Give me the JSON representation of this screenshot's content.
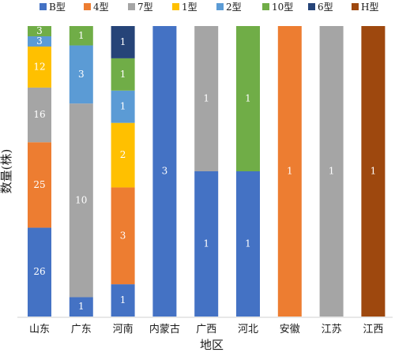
{
  "chart_data": {
    "type": "bar",
    "stacked": "percent",
    "xlabel": "地区",
    "ylabel": "数量(株)",
    "categories": [
      "山东",
      "广东",
      "河南",
      "内蒙古",
      "广西",
      "河北",
      "安徽",
      "江苏",
      "江西"
    ],
    "series": [
      {
        "name": "B型",
        "color": "#4472c4",
        "values": [
          26,
          1,
          1,
          3,
          1,
          1,
          0,
          0,
          0
        ]
      },
      {
        "name": "4型",
        "color": "#ed7d31",
        "values": [
          25,
          0,
          3,
          0,
          0,
          0,
          1,
          0,
          0
        ]
      },
      {
        "name": "7型",
        "color": "#a5a5a5",
        "values": [
          16,
          10,
          0,
          0,
          1,
          0,
          0,
          1,
          0
        ]
      },
      {
        "name": "1型",
        "color": "#ffc000",
        "values": [
          12,
          0,
          2,
          0,
          0,
          0,
          0,
          0,
          0
        ]
      },
      {
        "name": "2型",
        "color": "#5b9bd5",
        "values": [
          3,
          3,
          1,
          0,
          0,
          0,
          0,
          0,
          0
        ]
      },
      {
        "name": "10型",
        "color": "#70ad47",
        "values": [
          3,
          1,
          1,
          0,
          0,
          1,
          0,
          0,
          0
        ]
      },
      {
        "name": "6型",
        "color": "#264478",
        "values": [
          0,
          0,
          1,
          0,
          0,
          0,
          0,
          0,
          0
        ]
      },
      {
        "name": "H型",
        "color": "#9e480e",
        "values": [
          0,
          0,
          0,
          0,
          0,
          0,
          0,
          0,
          1
        ]
      }
    ],
    "legend_position": "top",
    "grid": false
  }
}
